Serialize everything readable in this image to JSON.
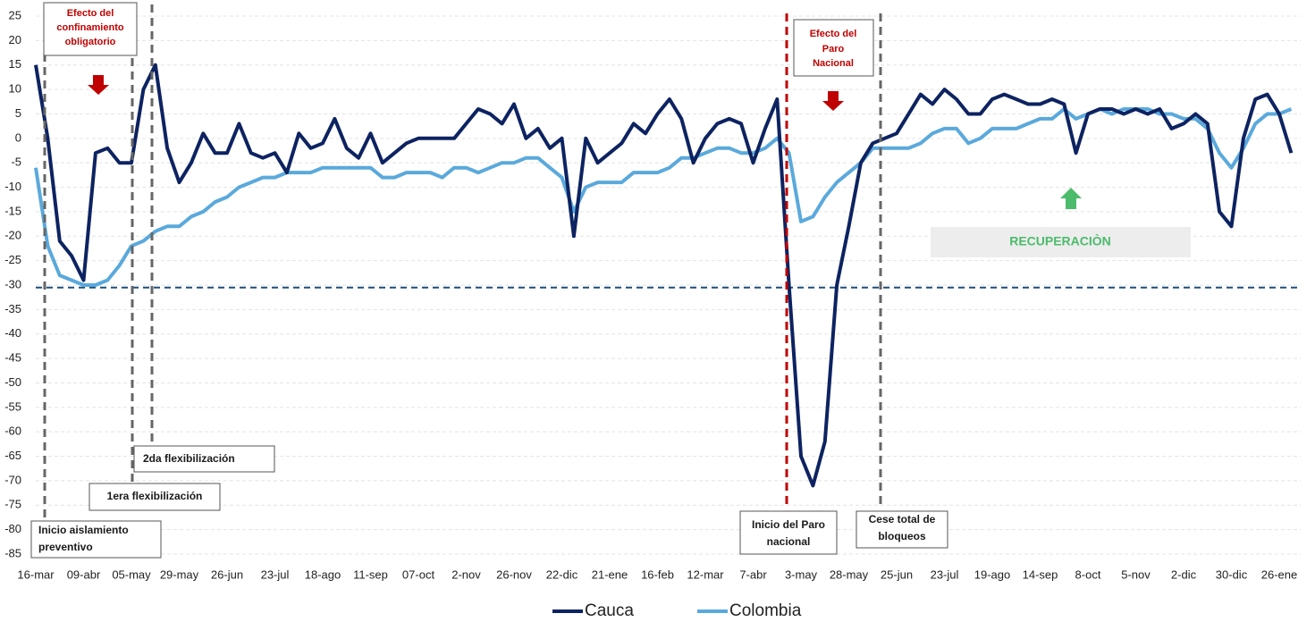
{
  "chart_data": {
    "type": "line",
    "categories": [
      "16-mar",
      null,
      null,
      null,
      "09-abr",
      null,
      null,
      null,
      "05-may",
      null,
      null,
      null,
      "29-may",
      null,
      null,
      null,
      "26-jun",
      null,
      null,
      null,
      "23-jul",
      null,
      null,
      null,
      "18-ago",
      null,
      null,
      null,
      "11-sep",
      null,
      null,
      null,
      "07-oct",
      null,
      null,
      null,
      "2-nov",
      null,
      null,
      null,
      "26-nov",
      null,
      null,
      null,
      "22-dic",
      null,
      null,
      null,
      "21-ene",
      null,
      null,
      null,
      "16-feb",
      null,
      null,
      null,
      "12-mar",
      null,
      null,
      null,
      "7-abr",
      null,
      null,
      null,
      "3-may",
      null,
      null,
      null,
      "28-may",
      null,
      null,
      null,
      "25-jun",
      null,
      null,
      null,
      "23-jul",
      null,
      null,
      null,
      "19-ago",
      null,
      null,
      null,
      "14-sep",
      null,
      null,
      null,
      "8-oct",
      null,
      null,
      null,
      "5-nov",
      null,
      null,
      null,
      "2-dic",
      null,
      null,
      null,
      "30-dic",
      null,
      null,
      null,
      "26-ene",
      null
    ],
    "series": [
      {
        "name": "Cauca",
        "color": "#0d2361",
        "values": [
          15,
          0,
          -21,
          -24,
          -29,
          -3,
          -2,
          -5,
          -5,
          10,
          15,
          -2,
          -9,
          -5,
          1,
          -3,
          -3,
          3,
          -3,
          -4,
          -3,
          -7,
          1,
          -2,
          -1,
          4,
          -2,
          -4,
          1,
          -5,
          -3,
          -1,
          0,
          0,
          0,
          0,
          3,
          6,
          5,
          3,
          7,
          0,
          2,
          -2,
          0,
          -20,
          0,
          -5,
          -3,
          -1,
          3,
          1,
          5,
          8,
          4,
          -5,
          0,
          3,
          4,
          3,
          -5,
          2,
          8,
          -30,
          -65,
          -71,
          -62,
          -30,
          -18,
          -5,
          -1,
          0,
          1,
          5,
          9,
          7,
          10,
          8,
          5,
          5,
          8,
          9,
          8,
          7,
          7,
          8,
          7,
          -3,
          5,
          6,
          6,
          5,
          6,
          5,
          6,
          2,
          3,
          5,
          3,
          -15,
          -18,
          0,
          8,
          9,
          5,
          -3
        ]
      },
      {
        "name": "Colombia",
        "color": "#5aa9dc",
        "values": [
          -6,
          -22,
          -28,
          -29,
          -30,
          -30,
          -29,
          -26,
          -22,
          -21,
          -19,
          -18,
          -18,
          -16,
          -15,
          -13,
          -12,
          -10,
          -9,
          -8,
          -8,
          -7,
          -7,
          -7,
          -6,
          -6,
          -6,
          -6,
          -6,
          -8,
          -8,
          -7,
          -7,
          -7,
          -8,
          -6,
          -6,
          -7,
          -6,
          -5,
          -5,
          -4,
          -4,
          -6,
          -8,
          -15,
          -10,
          -9,
          -9,
          -9,
          -7,
          -7,
          -7,
          -6,
          -4,
          -4,
          -3,
          -2,
          -2,
          -3,
          -3,
          -2,
          0,
          -3,
          -17,
          -16,
          -12,
          -9,
          -7,
          -5,
          -2,
          -2,
          -2,
          -2,
          -1,
          1,
          2,
          2,
          -1,
          0,
          2,
          2,
          2,
          3,
          4,
          4,
          6,
          4,
          5,
          6,
          5,
          6,
          6,
          6,
          5,
          5,
          4,
          4,
          2,
          -3,
          -6,
          -2,
          3,
          5,
          5,
          6
        ]
      }
    ],
    "ylim": [
      -85,
      25
    ],
    "yticks": [
      25,
      20,
      15,
      10,
      5,
      0,
      -5,
      -10,
      -15,
      -20,
      -25,
      -30,
      -35,
      -40,
      -45,
      -50,
      -55,
      -60,
      -65,
      -70,
      -75,
      -80,
      -85
    ],
    "grid": true,
    "reference_line": -30.5,
    "annotations": [
      {
        "lines": [
          "Efecto del",
          "confinamiento",
          "obligatorio"
        ]
      },
      {
        "lines": [
          "Efecto del",
          "Paro",
          "Nacional"
        ]
      },
      {
        "lines": [
          "2da flexibilización"
        ]
      },
      {
        "lines": [
          "1era flexibilización"
        ]
      },
      {
        "lines": [
          "Inicio aislamiento",
          "preventivo"
        ]
      },
      {
        "lines": [
          "Inicio del Paro",
          "nacional"
        ]
      },
      {
        "lines": [
          "Cese total de",
          "bloqueos"
        ]
      },
      {
        "lines": [
          "RECUPERACIÒN"
        ]
      }
    ]
  }
}
